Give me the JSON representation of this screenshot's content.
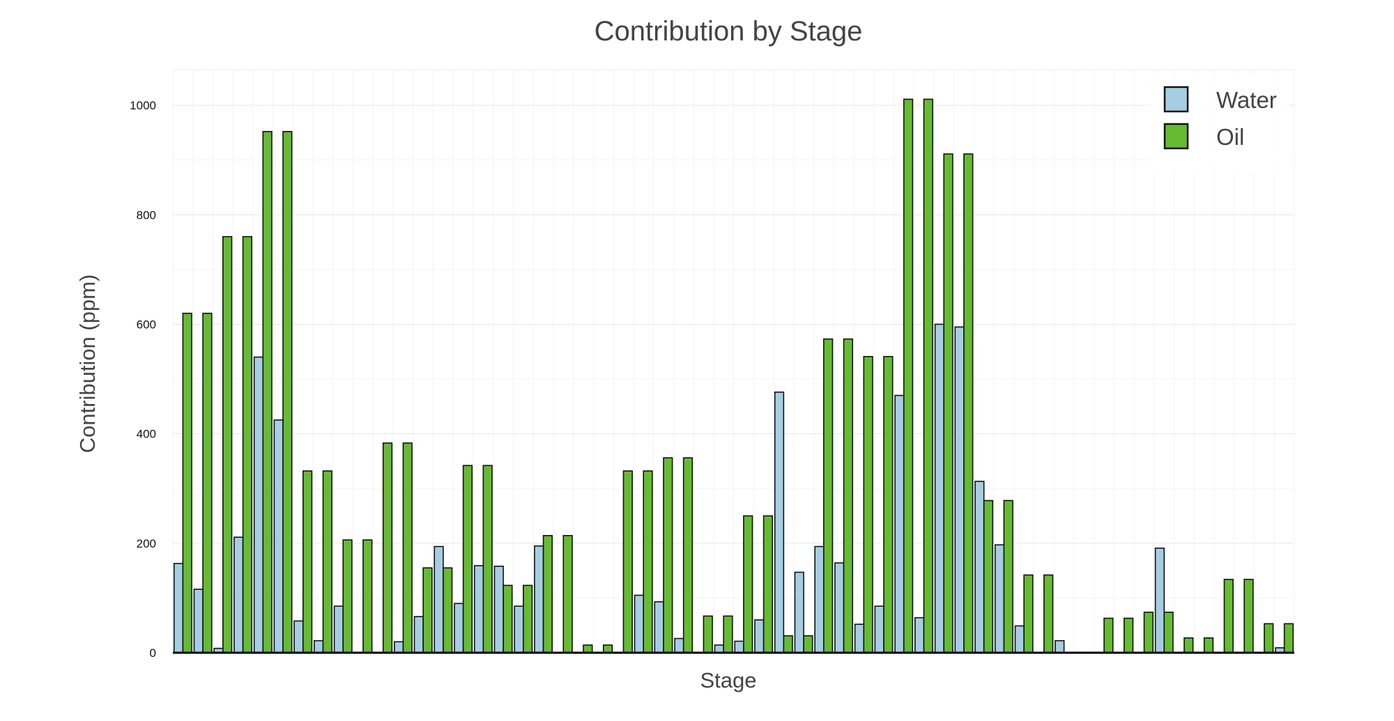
{
  "chart_data": {
    "type": "bar",
    "title": "Contribution by Stage",
    "xlabel": "Stage",
    "ylabel": "Contribution (ppm)",
    "ylim": [
      0,
      1065
    ],
    "yticks": [
      0,
      200,
      400,
      600,
      800,
      1000
    ],
    "grid": true,
    "legend_position": "top-right",
    "series": [
      {
        "name": "Water",
        "color": "#a6cee3",
        "values": [
          163,
          116,
          8,
          211,
          540,
          425,
          58,
          22,
          85,
          0,
          0,
          20,
          66,
          194,
          90,
          159,
          158,
          85,
          195,
          0,
          0,
          0,
          0,
          105,
          93,
          26,
          0,
          14,
          21,
          60,
          476,
          147,
          194,
          164,
          52,
          85,
          470,
          64,
          600,
          595,
          313,
          197,
          49,
          0,
          22,
          0,
          0,
          0,
          0,
          191,
          0,
          0,
          0,
          0,
          0,
          9
        ]
      },
      {
        "name": "Oil",
        "color": "#66bb33",
        "values": [
          620,
          620,
          760,
          760,
          952,
          952,
          332,
          332,
          206,
          206,
          383,
          383,
          155,
          155,
          342,
          342,
          123,
          123,
          214,
          214,
          14,
          14,
          332,
          332,
          356,
          356,
          67,
          67,
          250,
          250,
          31,
          31,
          573,
          573,
          541,
          541,
          1011,
          1011,
          911,
          911,
          278,
          278,
          142,
          142,
          0,
          0,
          63,
          63,
          74,
          74,
          27,
          27,
          134,
          134,
          53,
          53
        ]
      }
    ]
  }
}
